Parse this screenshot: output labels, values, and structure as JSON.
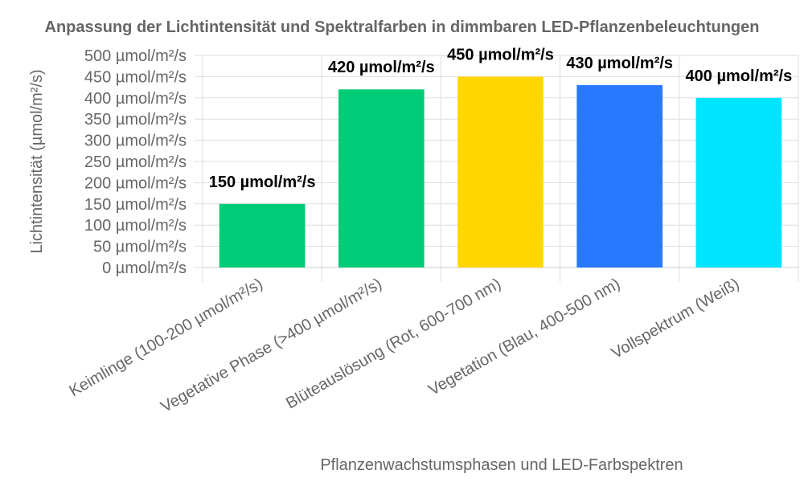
{
  "chart_data": {
    "type": "bar",
    "title": "Anpassung der Lichtintensität und Spektralfarben in dimmbaren LED-Pflanzenbeleuchtungen",
    "xlabel": "Pflanzenwachstumsphasen und LED-Farbspektren",
    "ylabel": "Lichtintensität (µmol/m²/s)",
    "categories": [
      "Keimlinge (100-200 µmol/m²/s)",
      "Vegetative Phase (>400 µmol/m²/s)",
      "Blüteauslösung (Rot, 600-700 nm)",
      "Vegetation (Blau, 400-500 nm)",
      "Vollspektrum (Weiß)"
    ],
    "values": [
      150,
      420,
      450,
      430,
      400
    ],
    "data_labels": [
      "150 µmol/m²/s",
      "420 µmol/m²/s",
      "450 µmol/m²/s",
      "430 µmol/m²/s",
      "400 µmol/m²/s"
    ],
    "colors": [
      "#00cc77",
      "#00cc77",
      "#ffd700",
      "#2979ff",
      "#00e5ff"
    ],
    "ylim": [
      0,
      500
    ],
    "y_ticks": [
      0,
      50,
      100,
      150,
      200,
      250,
      300,
      350,
      400,
      450,
      500
    ],
    "y_tick_labels": [
      "0 µmol/m²/s",
      "50 µmol/m²/s",
      "100 µmol/m²/s",
      "150 µmol/m²/s",
      "200 µmol/m²/s",
      "250 µmol/m²/s",
      "300 µmol/m²/s",
      "350 µmol/m²/s",
      "400 µmol/m²/s",
      "450 µmol/m²/s",
      "500 µmol/m²/s"
    ],
    "grid": true,
    "legend": "none"
  }
}
